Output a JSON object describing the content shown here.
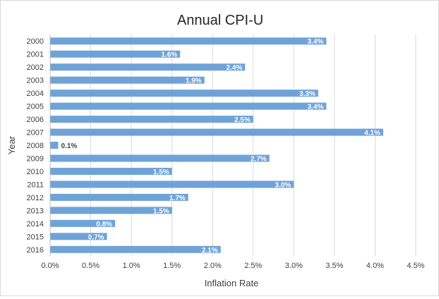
{
  "chart_data": {
    "type": "bar",
    "orientation": "horizontal",
    "title": "Annual CPI-U",
    "xlabel": "Inflation Rate",
    "ylabel": "Year",
    "categories": [
      "2000",
      "2001",
      "2002",
      "2003",
      "2004",
      "2005",
      "2006",
      "2007",
      "2008",
      "2009",
      "2010",
      "2011",
      "2012",
      "2013",
      "2014",
      "2015",
      "2016"
    ],
    "values": [
      3.4,
      1.6,
      2.4,
      1.9,
      3.3,
      3.4,
      2.5,
      4.1,
      0.1,
      2.7,
      1.5,
      3.0,
      1.7,
      1.5,
      0.8,
      0.7,
      2.1
    ],
    "data_labels": [
      "3.4%",
      "1.6%",
      "2.4%",
      "1.9%",
      "3.3%",
      "3.4%",
      "2.5%",
      "4.1%",
      "0.1%",
      "2.7%",
      "1.5%",
      "3.0%",
      "1.7%",
      "1.5%",
      "0.8%",
      "0.7%",
      "2.1%"
    ],
    "xlim": [
      0,
      4.5
    ],
    "x_ticks": [
      0,
      0.5,
      1,
      1.5,
      2,
      2.5,
      3,
      3.5,
      4,
      4.5
    ],
    "x_tick_labels": [
      "0.0%",
      "0.5%",
      "1.0%",
      "1.5%",
      "2.0%",
      "2.5%",
      "3.0%",
      "3.5%",
      "4.0%",
      "4.5%"
    ],
    "grid": "vertical",
    "legend": "none",
    "bar_color": "#6fa3d8",
    "grid_color": "#d9d9d9",
    "text_color": "#404040",
    "title_color": "#262626"
  }
}
